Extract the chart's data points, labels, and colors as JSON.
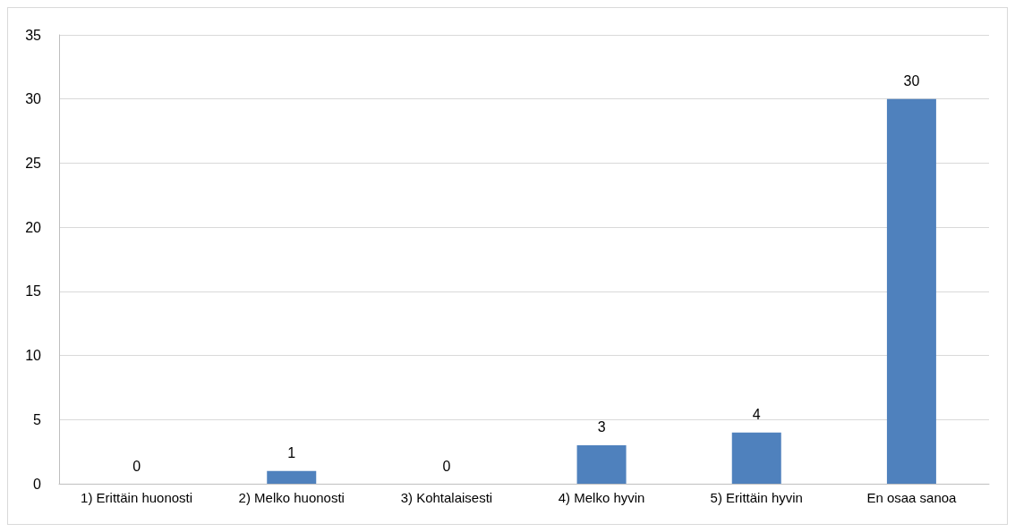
{
  "chart_data": {
    "type": "bar",
    "categories": [
      "1) Erittäin huonosti",
      "2) Melko huonosti",
      "3) Kohtalaisesti",
      "4) Melko hyvin",
      "5) Erittäin hyvin",
      "En osaa sanoa"
    ],
    "values": [
      0,
      1,
      0,
      3,
      4,
      30
    ],
    "color": "#4f81bd",
    "ylim": [
      0,
      35
    ],
    "yticks": [
      0,
      5,
      10,
      15,
      20,
      25,
      30,
      35
    ],
    "grid": "y",
    "data_labels": true
  }
}
